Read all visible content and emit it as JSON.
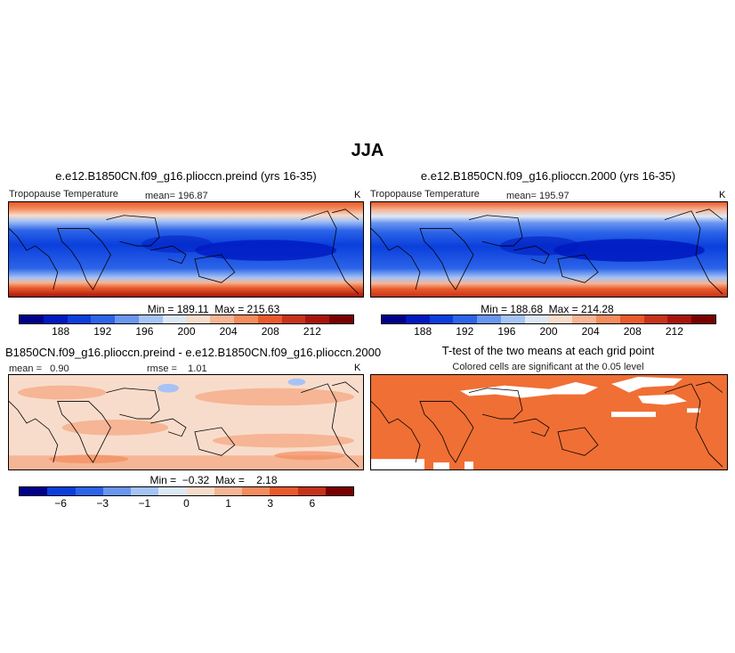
{
  "page": {
    "title": "JJA"
  },
  "colors": {
    "abs_scale": [
      "#00008b",
      "#0019c0",
      "#0a3fdc",
      "#2c64e8",
      "#6a96f0",
      "#a6c3f5",
      "#dde8f7",
      "#f8dccb",
      "#f6b595",
      "#f38c5e",
      "#e85a2a",
      "#c63318",
      "#a8140c",
      "#7a0000"
    ],
    "diff_scale": [
      "#00008b",
      "#0a3fdc",
      "#2c64e8",
      "#6a96f0",
      "#a6c3f5",
      "#dde8f7",
      "#f8dccb",
      "#f6b595",
      "#f38c5e",
      "#e85a2a",
      "#c63318",
      "#7a0000"
    ],
    "significant": "#f06f35"
  },
  "chart_data": [
    {
      "type": "heatmap",
      "title": "e.e12.B1850CN.f09_g16.plioccn.preind (yrs 16-35)",
      "subtitle": "Tropopause Temperature",
      "mean_label": "mean= 196.87",
      "unit": "K",
      "mean": 196.87,
      "min": 189.11,
      "max": 215.63,
      "stats_label": "Min = 189.11  Max = 215.63",
      "colorbar_ticks": [
        "188",
        "192",
        "196",
        "200",
        "204",
        "208",
        "212"
      ],
      "colorbar_levels": [
        186,
        188,
        190,
        192,
        194,
        196,
        198,
        200,
        202,
        204,
        206,
        208,
        210,
        212,
        214
      ],
      "xrange_deg": [
        -180,
        180
      ],
      "yrange_deg": [
        -90,
        90
      ]
    },
    {
      "type": "heatmap",
      "title": "e.e12.B1850CN.f09_g16.plioccn.2000 (yrs 16-35)",
      "subtitle": "Tropopause Temperature",
      "mean_label": "mean= 195.97",
      "unit": "K",
      "mean": 195.97,
      "min": 188.68,
      "max": 214.28,
      "stats_label": "Min = 188.68  Max = 214.28",
      "colorbar_ticks": [
        "188",
        "192",
        "196",
        "200",
        "204",
        "208",
        "212"
      ],
      "colorbar_levels": [
        186,
        188,
        190,
        192,
        194,
        196,
        198,
        200,
        202,
        204,
        206,
        208,
        210,
        212,
        214
      ]
    },
    {
      "type": "heatmap",
      "title": "B1850CN.f09_g16.plioccn.preind - e.e12.B1850CN.f09_g16.plioccn.2000",
      "mean_label": "mean =   0.90",
      "rmse_label": "rmse =    1.01",
      "unit": "K",
      "mean": 0.9,
      "rmse": 1.01,
      "min": -0.32,
      "max": 2.18,
      "stats_label": "Min =  −0.32  Max =    2.18",
      "colorbar_ticks": [
        "−6",
        "−3",
        "−1",
        "0",
        "1",
        "3",
        "6"
      ]
    },
    {
      "type": "heatmap",
      "title": "T-test of the two means at each grid point",
      "subtitle": "Colored cells are significant at the 0.05 level"
    }
  ]
}
